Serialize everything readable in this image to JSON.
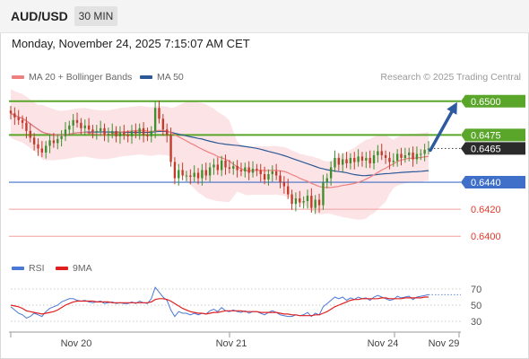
{
  "header": {
    "symbol": "AUD/USD",
    "timeframe": "30 MIN"
  },
  "datetime": "Monday, November 24, 2025 7:15:07 AM CET",
  "legend": {
    "bollinger": {
      "label": "MA 20 + Bollinger Bands",
      "color": "#f08080"
    },
    "ma50": {
      "label": "MA 50",
      "color": "#2d5a96"
    }
  },
  "copyright": "Research © 2025 Trading Central",
  "rsi_legend": {
    "rsi": {
      "label": "RSI",
      "color": "#4a78d6"
    },
    "ma9": {
      "label": "9MA",
      "color": "#e02020"
    }
  },
  "chart_data": [
    {
      "type": "line",
      "panel": "price",
      "ylim": [
        0.63935,
        0.65045
      ],
      "x_tick_labels": [
        "Nov 20",
        "Nov 21",
        "Nov 24",
        "Nov 29"
      ],
      "levels": [
        {
          "value": 0.65,
          "label": "0.6500",
          "style": "resistance-green"
        },
        {
          "value": 0.6475,
          "label": "0.6475",
          "style": "resistance-green"
        },
        {
          "value": 0.6465,
          "label": "0.6465",
          "style": "current-price"
        },
        {
          "value": 0.644,
          "label": "0.6440",
          "style": "pivot-blue"
        },
        {
          "value": 0.642,
          "label": "0.6420",
          "style": "support-red"
        },
        {
          "value": 0.64,
          "label": "0.6400",
          "style": "support-red"
        }
      ],
      "forecast_arrow": {
        "from": 0.6465,
        "to": 0.65
      },
      "close": [
        0.6491,
        0.6488,
        0.6486,
        0.6484,
        0.6478,
        0.6473,
        0.6468,
        0.6465,
        0.6462,
        0.6467,
        0.6471,
        0.6469,
        0.6472,
        0.6474,
        0.6479,
        0.6482,
        0.6486,
        0.6484,
        0.648,
        0.6482,
        0.6479,
        0.6477,
        0.6478,
        0.648,
        0.6475,
        0.6476,
        0.6478,
        0.6474,
        0.6477,
        0.6475,
        0.6474,
        0.6478,
        0.6476,
        0.648,
        0.6475,
        0.6474,
        0.6478,
        0.6495,
        0.6487,
        0.6479,
        0.6475,
        0.6455,
        0.6443,
        0.6449,
        0.6445,
        0.6445,
        0.6444,
        0.6447,
        0.6443,
        0.6449,
        0.6445,
        0.6451,
        0.6453,
        0.6449,
        0.6456,
        0.6451,
        0.645,
        0.6452,
        0.6449,
        0.6448,
        0.6451,
        0.6447,
        0.645,
        0.6449,
        0.6446,
        0.6442,
        0.6446,
        0.6448,
        0.6445,
        0.644,
        0.6437,
        0.6431,
        0.6424,
        0.6428,
        0.6425,
        0.6426,
        0.643,
        0.6421,
        0.6427,
        0.6423,
        0.644,
        0.6443,
        0.6451,
        0.6458,
        0.6453,
        0.6457,
        0.6454,
        0.6458,
        0.6455,
        0.6459,
        0.6456,
        0.6458,
        0.6454,
        0.646,
        0.6463,
        0.646,
        0.6458,
        0.6455,
        0.6456,
        0.6461,
        0.6458,
        0.646,
        0.6462,
        0.6457,
        0.6461,
        0.6461,
        0.6464,
        0.6465
      ],
      "ma20_end": 0.6454,
      "ma50_end": 0.6452
    },
    {
      "type": "line",
      "panel": "rsi",
      "ylim": [
        20,
        80
      ],
      "y_tick_labels": [
        "70",
        "50",
        "30"
      ],
      "series": [
        {
          "name": "RSI",
          "values": [
            48,
            44,
            40,
            38,
            34,
            36,
            40,
            38,
            36,
            42,
            46,
            48,
            50,
            54,
            56,
            58,
            58,
            56,
            55,
            56,
            54,
            53,
            54,
            55,
            52,
            53,
            54,
            52,
            53,
            52,
            52,
            54,
            52,
            55,
            53,
            52,
            58,
            72,
            66,
            60,
            56,
            44,
            36,
            42,
            40,
            40,
            38,
            40,
            38,
            40,
            39,
            43,
            45,
            42,
            47,
            43,
            42,
            44,
            42,
            41,
            43,
            40,
            42,
            42,
            40,
            38,
            41,
            43,
            41,
            38,
            37,
            36,
            36,
            38,
            37,
            38,
            41,
            36,
            40,
            38,
            48,
            52,
            56,
            60,
            58,
            60,
            56,
            59,
            57,
            60,
            58,
            59,
            56,
            60,
            62,
            60,
            58,
            56,
            57,
            61,
            59,
            60,
            61,
            57,
            60,
            61,
            62,
            63
          ]
        },
        {
          "name": "9MA",
          "values": [
            50,
            49,
            48,
            46,
            43,
            42,
            41,
            40,
            39,
            40,
            41,
            42,
            44,
            47,
            50,
            52,
            54,
            55,
            55,
            55,
            55,
            55,
            54,
            54,
            54,
            54,
            53,
            53,
            53,
            53,
            53,
            53,
            53,
            53,
            53,
            53,
            54,
            57,
            58,
            58,
            57,
            55,
            52,
            49,
            46,
            44,
            42,
            41,
            40,
            40,
            39,
            40,
            41,
            41,
            42,
            43,
            43,
            43,
            43,
            43,
            42,
            42,
            42,
            42,
            41,
            41,
            41,
            41,
            41,
            40,
            39,
            39,
            38,
            38,
            37,
            37,
            37,
            37,
            38,
            38,
            40,
            42,
            45,
            48,
            50,
            52,
            54,
            56,
            57,
            57,
            58,
            58,
            58,
            58,
            58,
            59,
            59,
            58,
            58,
            58,
            58,
            59,
            59,
            59,
            59,
            59,
            60,
            60
          ]
        }
      ]
    }
  ]
}
